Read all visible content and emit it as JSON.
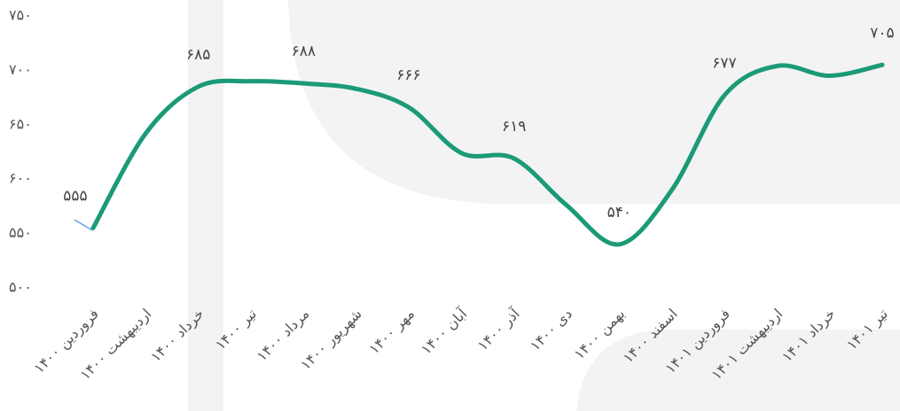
{
  "chart_data": {
    "type": "line",
    "categories": [
      "فروردین ۱۴۰۰",
      "اردیبهشت ۱۴۰۰",
      "خرداد ۱۴۰۰",
      "تیر ۱۴۰۰",
      "مرداد ۱۴۰۰",
      "شهریور ۱۴۰۰",
      "مهر ۱۴۰۰",
      "آبان ۱۴۰۰",
      "آذر ۱۴۰۰",
      "دی ۱۴۰۰",
      "بهمن ۱۴۰۰",
      "اسفند ۱۴۰۰",
      "فروردین ۱۴۰۱",
      "اردیبهشت ۱۴۰۱",
      "خرداد ۱۴۰۱",
      "تیر ۱۴۰۱"
    ],
    "values": [
      555,
      642,
      685,
      690,
      688,
      683,
      666,
      624,
      619,
      576,
      540,
      590,
      677,
      704,
      695,
      705
    ],
    "value_labels": [
      "۵۵۵",
      null,
      "۶۸۵",
      null,
      "۶۸۸",
      null,
      "۶۶۶",
      null,
      "۶۱۹",
      null,
      "۵۴۰",
      null,
      "۶۷۷",
      null,
      null,
      "۷۰۵"
    ],
    "color": "#1b9a77",
    "ylim": [
      500,
      750
    ],
    "yticks": [
      {
        "value": 500,
        "label": "۵۰۰"
      },
      {
        "value": 550,
        "label": "۵۵۰"
      },
      {
        "value": 600,
        "label": "۶۰۰"
      },
      {
        "value": 650,
        "label": "۶۵۰"
      },
      {
        "value": 700,
        "label": "۷۰۰"
      },
      {
        "value": 750,
        "label": "۷۵۰"
      }
    ],
    "grid": false
  }
}
